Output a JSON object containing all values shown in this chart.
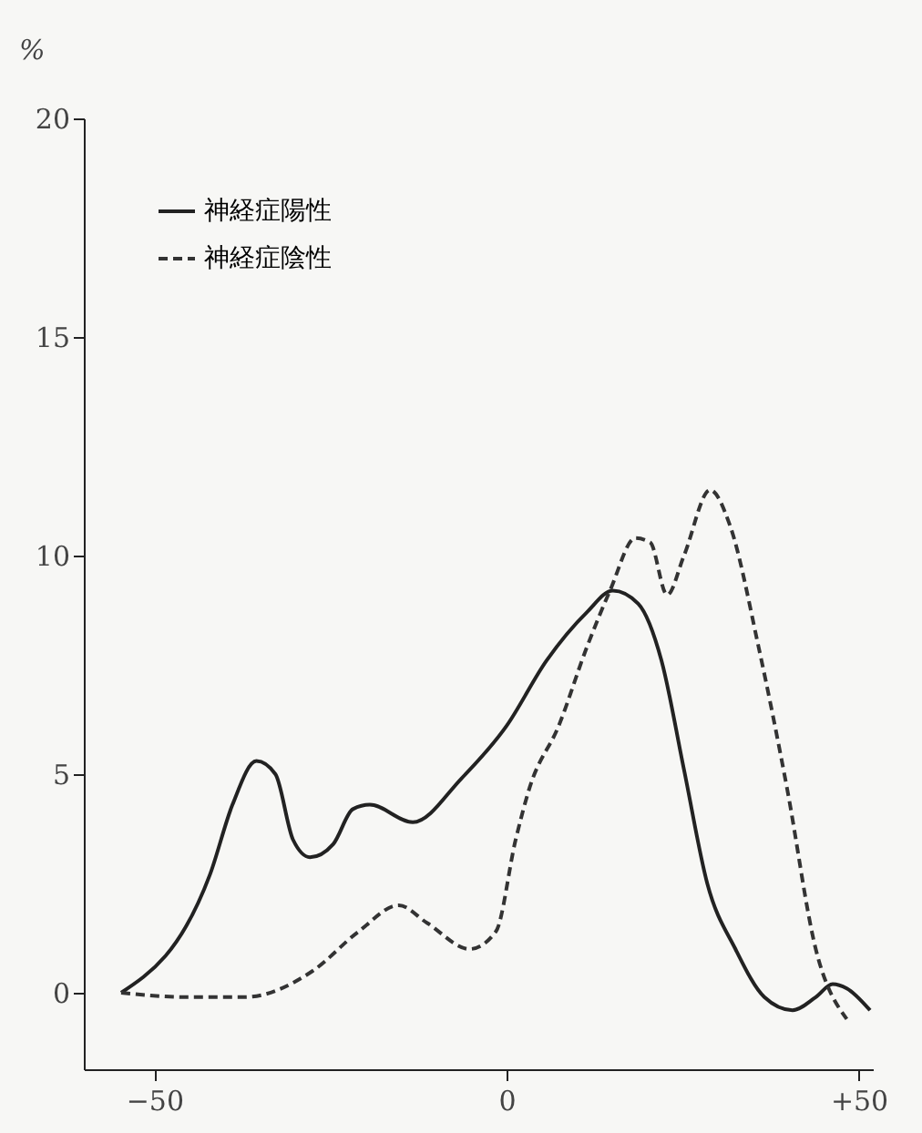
{
  "chart_data": {
    "type": "line",
    "ylabel": "%",
    "xlim": [
      -60,
      52
    ],
    "ylim": [
      -1.75,
      20
    ],
    "xticks": [
      {
        "value": -50,
        "label": "−50"
      },
      0,
      {
        "value": 50,
        "label": "+50"
      }
    ],
    "yticks": [
      0,
      5,
      10,
      15,
      20
    ],
    "grid": false,
    "legend": "top left",
    "marker": "none",
    "series": [
      {
        "name": "神経症陽性",
        "color": "#222222",
        "line_style": "solid",
        "x": [
          -54.7,
          -42.1,
          -38.9,
          -35.5,
          -32.8,
          -30.3,
          -27.9,
          -24.6,
          -21.8,
          -19.4,
          -13.3,
          -6.4,
          0,
          5.7,
          11.4,
          15.1,
          18.7,
          22.0,
          25.2,
          28.5,
          32.5,
          36.6,
          40.6,
          43.9,
          46.3,
          48.3,
          51.6
        ],
        "values": [
          0,
          2.7,
          4.3,
          5.3,
          5.0,
          3.5,
          3.1,
          3.4,
          4.2,
          4.3,
          3.9,
          4.9,
          6.1,
          7.6,
          8.7,
          9.2,
          8.9,
          7.6,
          5.1,
          2.5,
          1.0,
          -0.1,
          -0.4,
          -0.1,
          0.2,
          0.1,
          -0.4
        ]
      },
      {
        "name": "神経症陰性",
        "color": "#333333",
        "line_style": "dashed",
        "x": [
          -54.7,
          -45.3,
          -37.2,
          -27.5,
          -21.0,
          -15.3,
          -11.3,
          -5.2,
          -1.5,
          1.3,
          3.3,
          7.4,
          11.4,
          14.7,
          18.3,
          20.4,
          22.8,
          25.2,
          28.9,
          31.7,
          35.8,
          39.8,
          43.9,
          48.3
        ],
        "values": [
          0,
          -0.1,
          -0.1,
          0.5,
          1.4,
          2.0,
          1.6,
          1.0,
          1.4,
          3.5,
          4.7,
          6.1,
          7.9,
          9.2,
          10.4,
          10.3,
          9.1,
          10.0,
          11.5,
          10.7,
          7.9,
          4.7,
          1.0,
          -0.6
        ]
      }
    ]
  }
}
